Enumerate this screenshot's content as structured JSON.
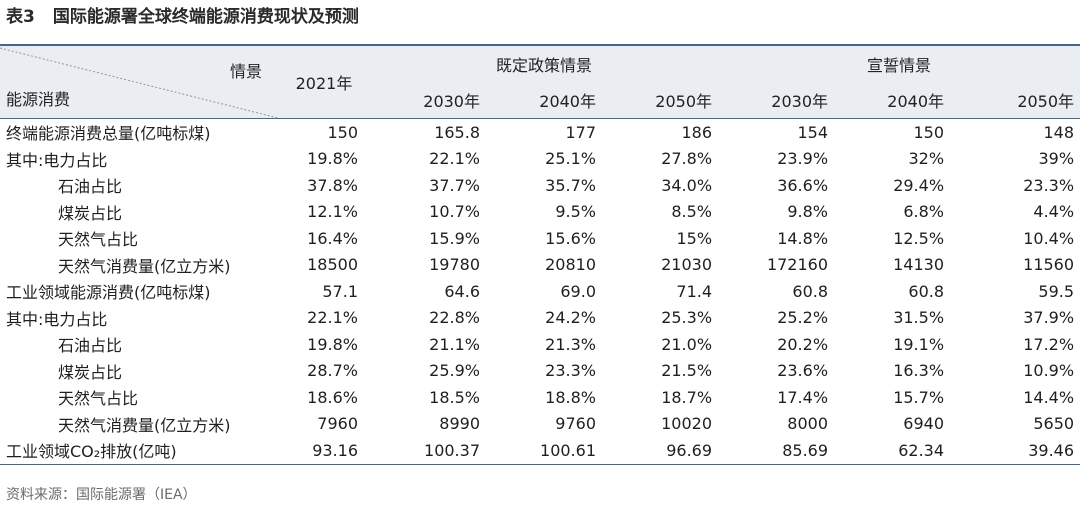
{
  "title": {
    "number": "表3",
    "text": "国际能源署全球终端能源消费现状及预测"
  },
  "header": {
    "corner_top": "情景",
    "corner_bottom": "能源消费",
    "col_2021": "2021年",
    "group_stated": "既定政策情景",
    "group_pledges": "宣誓情景",
    "years": [
      "2030年",
      "2040年",
      "2050年",
      "2030年",
      "2040年",
      "2050年"
    ]
  },
  "rows": [
    {
      "name": "终端能源消费总量(亿吨标煤)",
      "indent": false,
      "values": [
        "150",
        "165.8",
        "177",
        "186",
        "154",
        "150",
        "148"
      ]
    },
    {
      "name": "其中:电力占比",
      "indent": false,
      "values": [
        "19.8%",
        "22.1%",
        "25.1%",
        "27.8%",
        "23.9%",
        "32%",
        "39%"
      ]
    },
    {
      "name": "石油占比",
      "indent": true,
      "values": [
        "37.8%",
        "37.7%",
        "35.7%",
        "34.0%",
        "36.6%",
        "29.4%",
        "23.3%"
      ]
    },
    {
      "name": "煤炭占比",
      "indent": true,
      "values": [
        "12.1%",
        "10.7%",
        "9.5%",
        "8.5%",
        "9.8%",
        "6.8%",
        "4.4%"
      ]
    },
    {
      "name": "天然气占比",
      "indent": true,
      "values": [
        "16.4%",
        "15.9%",
        "15.6%",
        "15%",
        "14.8%",
        "12.5%",
        "10.4%"
      ]
    },
    {
      "name": "天然气消费量(亿立方米)",
      "indent": true,
      "values": [
        "18500",
        "19780",
        "20810",
        "21030",
        "172160",
        "14130",
        "11560"
      ]
    },
    {
      "name": "工业领域能源消费(亿吨标煤)",
      "indent": false,
      "values": [
        "57.1",
        "64.6",
        "69.0",
        "71.4",
        "60.8",
        "60.8",
        "59.5"
      ]
    },
    {
      "name": "其中:电力占比",
      "indent": false,
      "values": [
        "22.1%",
        "22.8%",
        "24.2%",
        "25.3%",
        "25.2%",
        "31.5%",
        "37.9%"
      ]
    },
    {
      "name": "石油占比",
      "indent": true,
      "values": [
        "19.8%",
        "21.1%",
        "21.3%",
        "21.0%",
        "20.2%",
        "19.1%",
        "17.2%"
      ]
    },
    {
      "name": "煤炭占比",
      "indent": true,
      "values": [
        "28.7%",
        "25.9%",
        "23.3%",
        "21.5%",
        "23.6%",
        "16.3%",
        "10.9%"
      ]
    },
    {
      "name": "天然气占比",
      "indent": true,
      "values": [
        "18.6%",
        "18.5%",
        "18.8%",
        "18.7%",
        "17.4%",
        "15.7%",
        "14.4%"
      ]
    },
    {
      "name": "天然气消费量(亿立方米)",
      "indent": true,
      "values": [
        "7960",
        "8990",
        "9760",
        "10020",
        "8000",
        "6940",
        "5650"
      ]
    },
    {
      "name": "工业领域CO₂排放(亿吨)",
      "indent": false,
      "values": [
        "93.16",
        "100.37",
        "100.61",
        "96.69",
        "85.69",
        "62.34",
        "39.46"
      ]
    }
  ],
  "source": "资料来源：国际能源署（IEA）"
}
